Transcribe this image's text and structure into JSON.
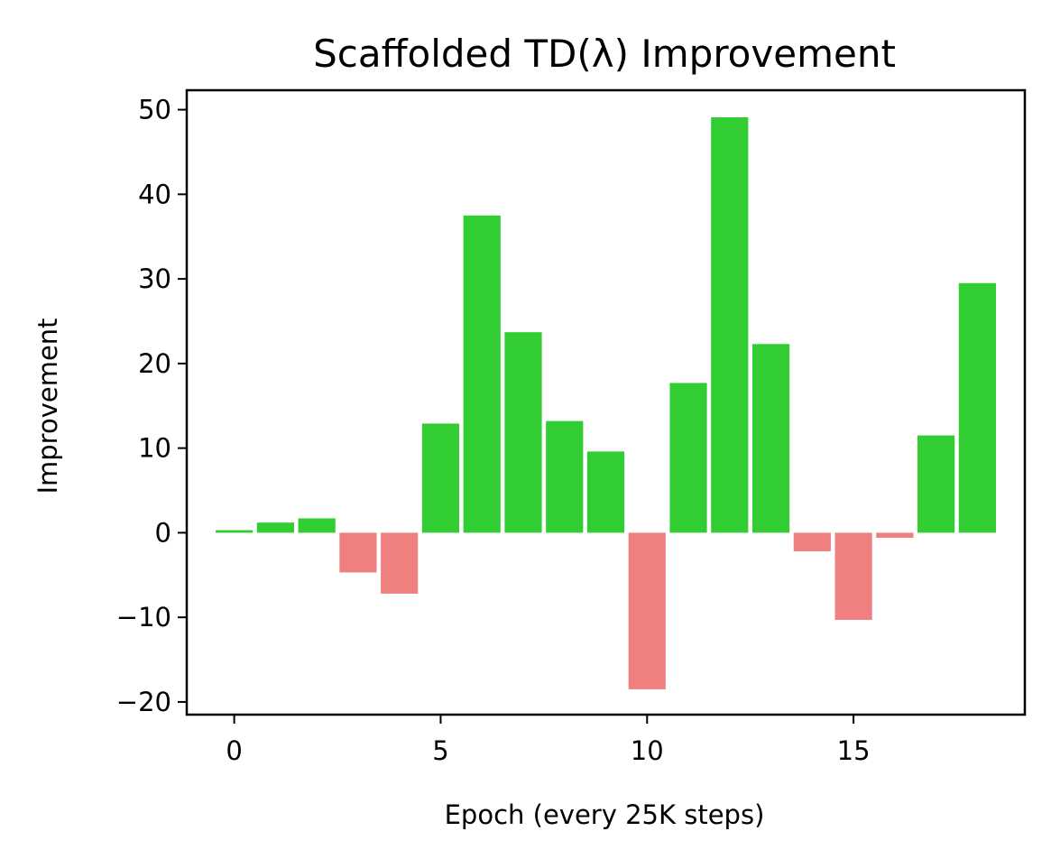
{
  "chart_data": {
    "type": "bar",
    "title": "Scaffolded TD(λ) Improvement",
    "xlabel": "Epoch (every 25K steps)",
    "ylabel": "Improvement",
    "x": [
      0,
      1,
      2,
      3,
      4,
      5,
      6,
      7,
      8,
      9,
      10,
      11,
      12,
      13,
      14,
      15,
      16,
      17,
      18
    ],
    "values": [
      0.3,
      1.2,
      1.7,
      -4.7,
      -7.2,
      12.9,
      37.5,
      23.7,
      13.2,
      9.6,
      -18.5,
      17.7,
      49.1,
      22.3,
      -2.2,
      -10.3,
      -0.6,
      11.5,
      29.5
    ],
    "xlim": [
      -1.15,
      19.15
    ],
    "ylim": [
      -21.5,
      52.3
    ],
    "xticks": [
      0,
      5,
      10,
      15
    ],
    "xtick_labels": [
      "0",
      "5",
      "10",
      "15"
    ],
    "yticks": [
      -20,
      -10,
      0,
      10,
      20,
      30,
      40,
      50
    ],
    "ytick_labels": [
      "−20",
      "−10",
      "0",
      "10",
      "20",
      "30",
      "40",
      "50"
    ],
    "grid": false,
    "positive_color": "#32cd32",
    "negative_color": "#f08080"
  }
}
